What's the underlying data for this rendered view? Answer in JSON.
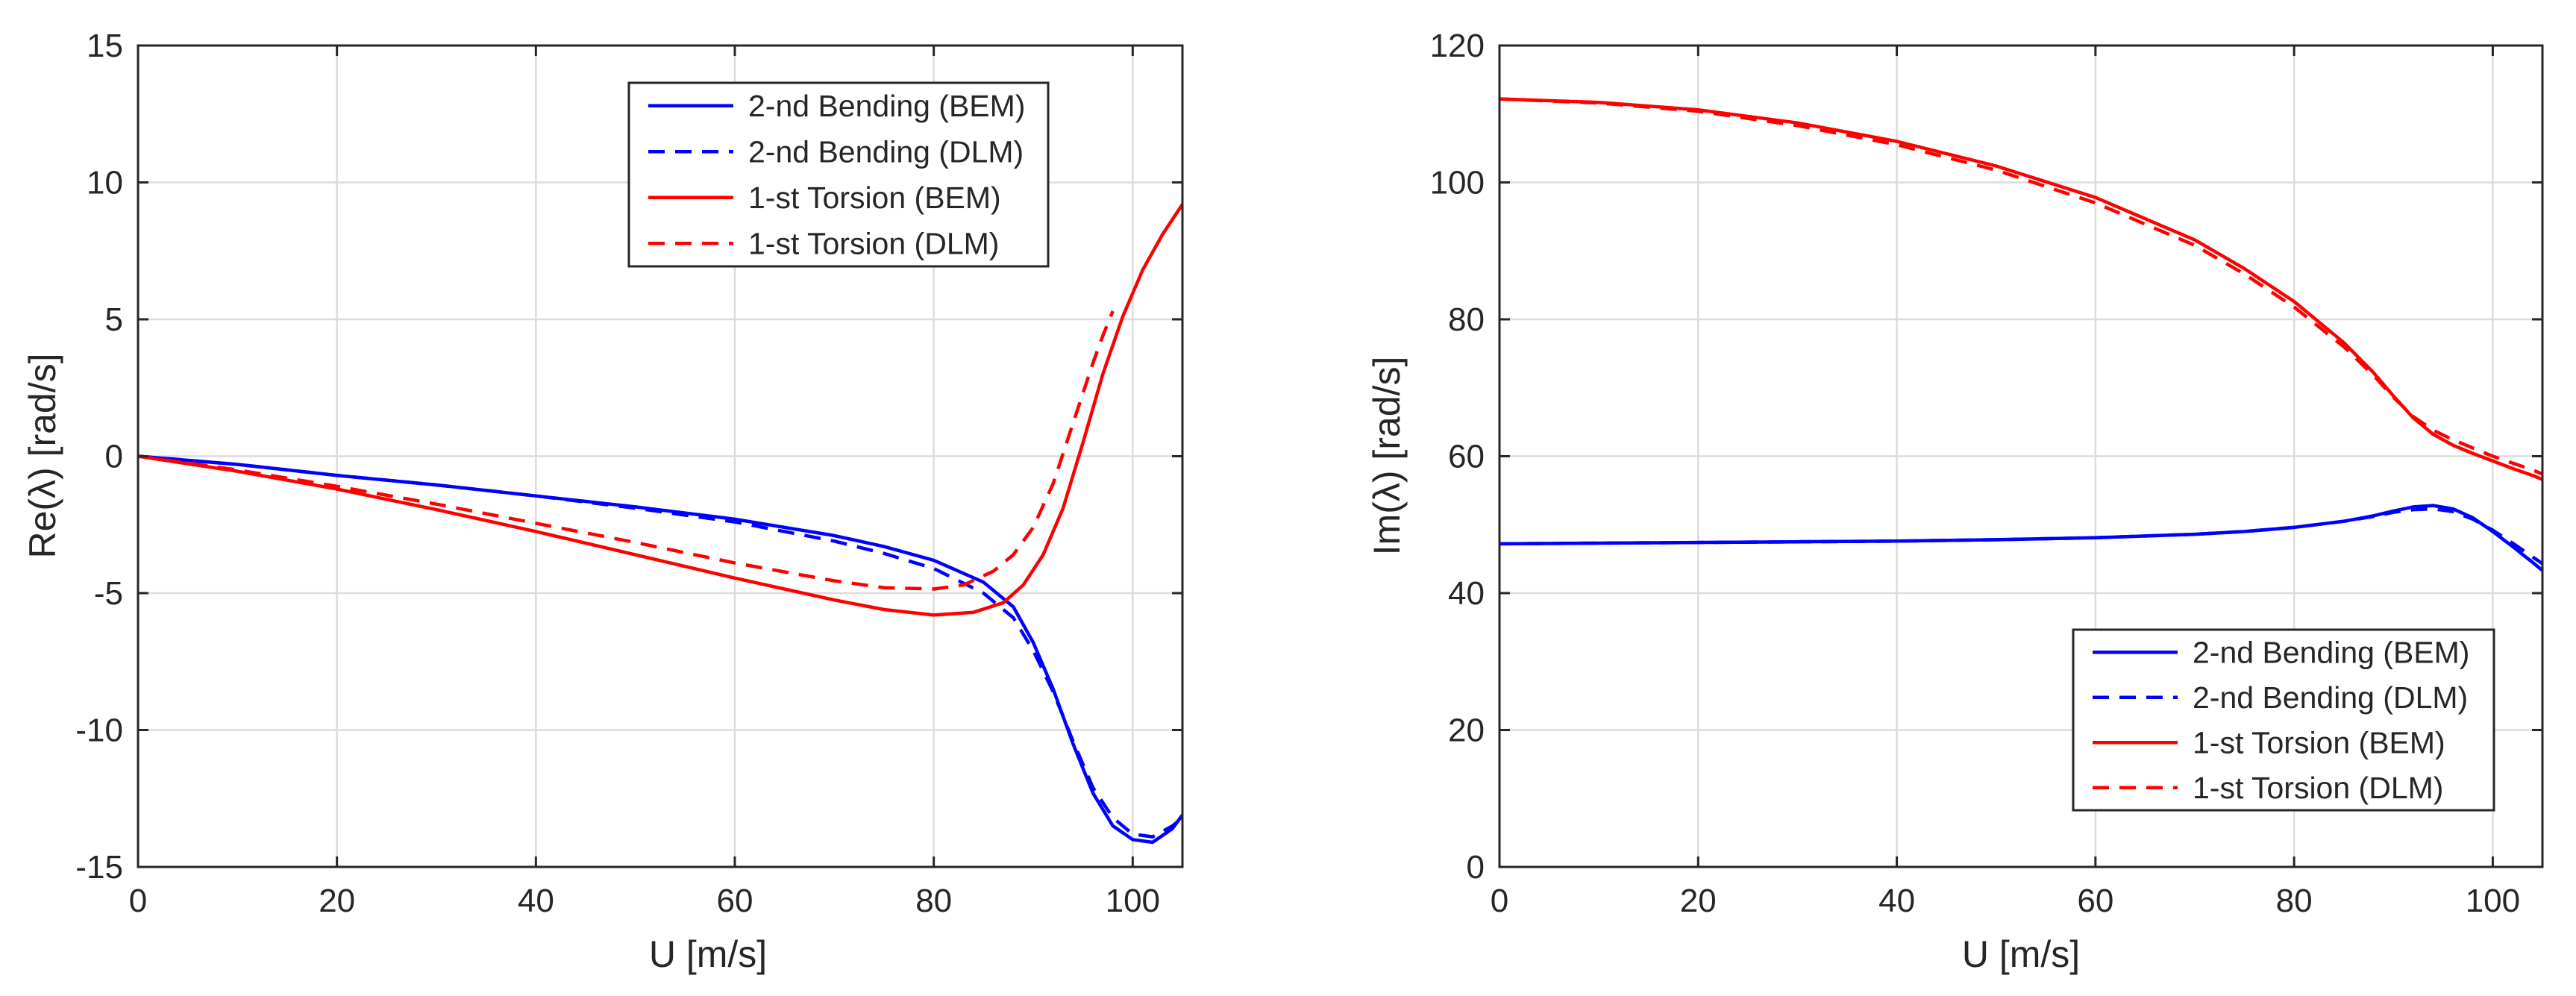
{
  "chart_data": [
    {
      "type": "line",
      "title": "",
      "xlabel": "U [m/s]",
      "ylabel": "Re(λ) [rad/s]",
      "xlim": [
        0,
        105
      ],
      "ylim": [
        -15,
        15
      ],
      "xticks": [
        0,
        20,
        40,
        60,
        80,
        100
      ],
      "yticks": [
        15,
        10,
        5,
        0,
        -5,
        -10,
        -15
      ],
      "xtick_labels": [
        "0",
        "20",
        "40",
        "60",
        "80",
        "100"
      ],
      "ytick_labels": [
        "15",
        "10",
        "5",
        "0",
        "-5",
        "-10",
        "-15"
      ],
      "grid": true,
      "legend_position": "top-right",
      "series": [
        {
          "name": "2-nd Bending (BEM)",
          "color": "#0000ff",
          "dash": "solid",
          "x": [
            0,
            10,
            20,
            30,
            40,
            50,
            60,
            70,
            75,
            80,
            85,
            88,
            90,
            92,
            94,
            96,
            98,
            100,
            102,
            104,
            105
          ],
          "y": [
            0,
            -0.3,
            -0.7,
            -1.05,
            -1.45,
            -1.85,
            -2.3,
            -2.9,
            -3.3,
            -3.8,
            -4.6,
            -5.5,
            -6.8,
            -8.5,
            -10.5,
            -12.3,
            -13.5,
            -14.0,
            -14.1,
            -13.6,
            -13.1
          ]
        },
        {
          "name": "2-nd Bending (DLM)",
          "color": "#0000ff",
          "dash": "dashed",
          "x": [
            0,
            10,
            20,
            30,
            40,
            50,
            60,
            70,
            75,
            80,
            85,
            88,
            90,
            92,
            94,
            96,
            98,
            100,
            102,
            104,
            105
          ],
          "y": [
            0,
            -0.3,
            -0.7,
            -1.05,
            -1.45,
            -1.9,
            -2.4,
            -3.1,
            -3.55,
            -4.1,
            -5.0,
            -5.9,
            -7.1,
            -8.6,
            -10.4,
            -12.1,
            -13.2,
            -13.8,
            -13.9,
            -13.5,
            -13.2
          ]
        },
        {
          "name": "1-st Torsion (BEM)",
          "color": "#ff0000",
          "dash": "solid",
          "x": [
            0,
            10,
            20,
            30,
            40,
            50,
            60,
            70,
            75,
            80,
            84,
            87,
            89,
            91,
            93,
            95,
            97,
            99,
            101,
            103,
            105
          ],
          "y": [
            0,
            -0.55,
            -1.2,
            -1.95,
            -2.75,
            -3.6,
            -4.45,
            -5.25,
            -5.6,
            -5.8,
            -5.7,
            -5.35,
            -4.7,
            -3.6,
            -1.9,
            0.5,
            3.0,
            5.1,
            6.8,
            8.1,
            9.2
          ]
        },
        {
          "name": "1-st Torsion (DLM)",
          "color": "#ff0000",
          "dash": "dashed",
          "x": [
            0,
            10,
            20,
            30,
            40,
            50,
            60,
            70,
            75,
            80,
            83,
            86,
            88,
            90,
            92,
            94,
            96,
            97,
            98
          ],
          "y": [
            0,
            -0.5,
            -1.1,
            -1.75,
            -2.45,
            -3.15,
            -3.9,
            -4.55,
            -4.8,
            -4.85,
            -4.7,
            -4.2,
            -3.6,
            -2.6,
            -1.0,
            1.2,
            3.4,
            4.4,
            5.3
          ]
        }
      ]
    },
    {
      "type": "line",
      "title": "",
      "xlabel": "U [m/s]",
      "ylabel": "Im(λ) [rad/s]",
      "xlim": [
        0,
        105
      ],
      "ylim": [
        0,
        120
      ],
      "xticks": [
        0,
        20,
        40,
        60,
        80,
        100
      ],
      "yticks": [
        120,
        100,
        80,
        60,
        40,
        20,
        0
      ],
      "xtick_labels": [
        "0",
        "20",
        "40",
        "60",
        "80",
        "100"
      ],
      "ytick_labels": [
        "120",
        "100",
        "80",
        "60",
        "40",
        "20",
        "0"
      ],
      "grid": true,
      "legend_position": "bottom-right",
      "series": [
        {
          "name": "2-nd Bending (BEM)",
          "color": "#0000ff",
          "dash": "solid",
          "x": [
            0,
            10,
            20,
            30,
            40,
            50,
            60,
            70,
            75,
            80,
            85,
            88,
            90,
            92,
            94,
            96,
            98,
            100,
            102,
            104,
            105
          ],
          "y": [
            47.2,
            47.3,
            47.4,
            47.5,
            47.6,
            47.8,
            48.1,
            48.6,
            49.0,
            49.6,
            50.5,
            51.3,
            52.0,
            52.6,
            52.8,
            52.3,
            51.0,
            49.0,
            46.8,
            44.5,
            43.3
          ]
        },
        {
          "name": "2-nd Bending (DLM)",
          "color": "#0000ff",
          "dash": "dashed",
          "x": [
            0,
            10,
            20,
            30,
            40,
            50,
            60,
            70,
            75,
            80,
            85,
            88,
            90,
            92,
            94,
            96,
            98,
            100,
            102,
            104,
            105
          ],
          "y": [
            47.2,
            47.3,
            47.4,
            47.5,
            47.6,
            47.8,
            48.1,
            48.6,
            49.0,
            49.6,
            50.5,
            51.2,
            51.8,
            52.2,
            52.3,
            51.9,
            50.8,
            49.2,
            47.3,
            45.3,
            44.3
          ]
        },
        {
          "name": "1-st Torsion (BEM)",
          "color": "#ff0000",
          "dash": "solid",
          "x": [
            0,
            10,
            20,
            30,
            40,
            50,
            60,
            70,
            75,
            80,
            85,
            88,
            90,
            92,
            94,
            96,
            98,
            100,
            102,
            104,
            105
          ],
          "y": [
            112.2,
            111.7,
            110.6,
            108.7,
            106.0,
            102.4,
            97.8,
            91.6,
            87.4,
            82.6,
            76.6,
            72.2,
            68.8,
            65.6,
            63.2,
            61.6,
            60.4,
            59.3,
            58.2,
            57.2,
            56.6
          ]
        },
        {
          "name": "1-st Torsion (DLM)",
          "color": "#ff0000",
          "dash": "dashed",
          "x": [
            0,
            10,
            20,
            30,
            40,
            50,
            60,
            70,
            75,
            80,
            85,
            88,
            90,
            92,
            94,
            96,
            98,
            100,
            102,
            104,
            105
          ],
          "y": [
            112.2,
            111.6,
            110.4,
            108.3,
            105.5,
            101.8,
            97.0,
            90.8,
            86.6,
            81.8,
            76.0,
            71.8,
            68.6,
            65.8,
            63.8,
            62.4,
            61.2,
            60.0,
            59.0,
            58.0,
            57.4
          ]
        }
      ]
    }
  ]
}
